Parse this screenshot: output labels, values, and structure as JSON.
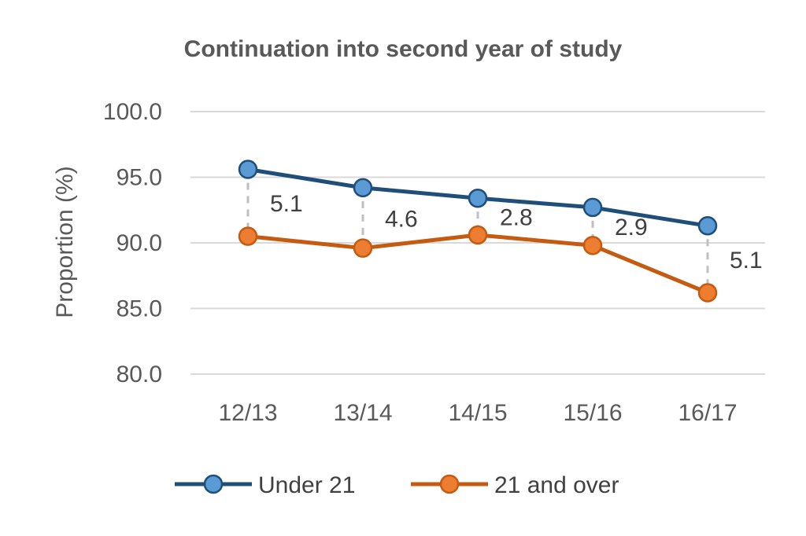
{
  "chart_data": {
    "type": "line",
    "title": "Continuation into second year of study",
    "xlabel": "",
    "ylabel": "Proportion (%)",
    "categories": [
      "12/13",
      "13/14",
      "14/15",
      "15/16",
      "16/17"
    ],
    "ylim": [
      80,
      100
    ],
    "yticks": [
      "80.0",
      "85.0",
      "90.0",
      "95.0",
      "100.0"
    ],
    "grid": true,
    "legend_position": "bottom",
    "series": [
      {
        "name": "Under 21",
        "color": "#1f4e79",
        "marker_fill": "#5b9bd5",
        "values": [
          95.6,
          94.2,
          93.4,
          92.7,
          91.3
        ]
      },
      {
        "name": "21 and over",
        "color": "#c55a11",
        "marker_fill": "#ed7d31",
        "values": [
          90.5,
          89.6,
          90.6,
          89.8,
          86.2
        ]
      }
    ],
    "gap_labels": [
      "5.1",
      "4.6",
      "2.8",
      "2.9",
      "5.1"
    ]
  }
}
